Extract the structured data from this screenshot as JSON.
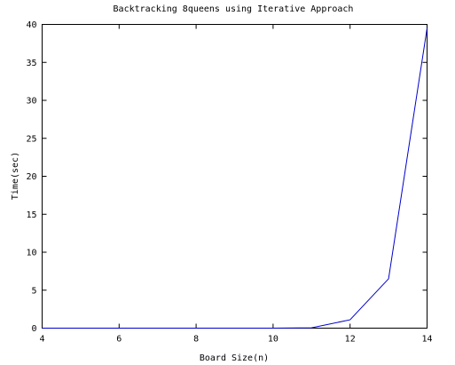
{
  "chart_data": {
    "type": "line",
    "title": "Backtracking 8queens using Iterative Approach",
    "xlabel": "Board Size(n)",
    "ylabel": "Time(sec)",
    "xlim": [
      4,
      14
    ],
    "ylim": [
      0,
      40
    ],
    "xticks": [
      4,
      6,
      8,
      10,
      12,
      14
    ],
    "yticks": [
      0,
      5,
      10,
      15,
      20,
      25,
      30,
      35,
      40
    ],
    "grid": false,
    "legend": "none",
    "series": [
      {
        "color": "#0000cc",
        "x": [
          4,
          5,
          6,
          7,
          8,
          9,
          10,
          11,
          12,
          13,
          14
        ],
        "y": [
          0,
          0,
          0,
          0,
          0,
          0,
          0,
          0.05,
          1.1,
          6.5,
          39.5
        ]
      }
    ]
  }
}
